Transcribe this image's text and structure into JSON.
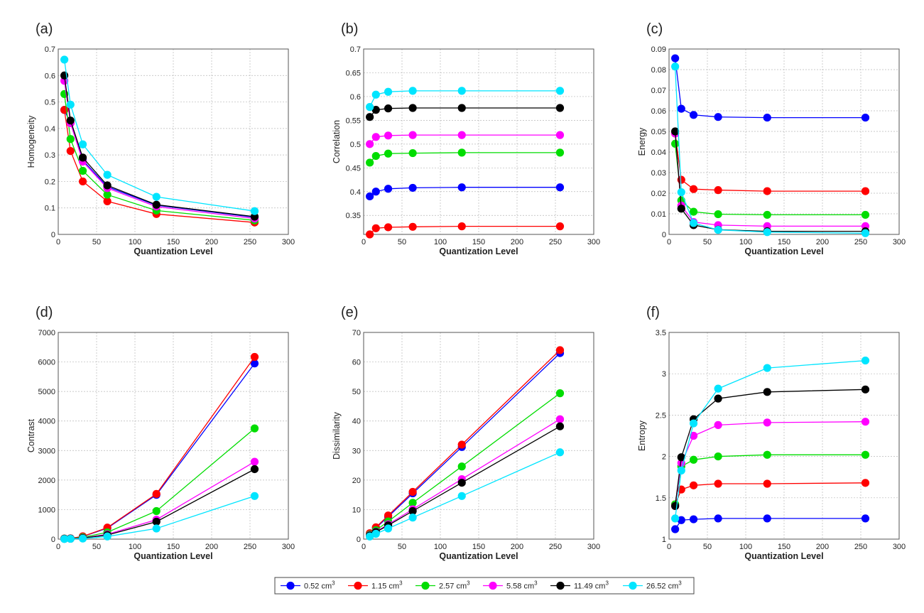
{
  "figure": {
    "x_label": "Quantization Level",
    "legend": [
      {
        "name": "0.52 cm",
        "sup": "3",
        "color": "#0000ff"
      },
      {
        "name": "1.15 cm",
        "sup": "3",
        "color": "#ff0000"
      },
      {
        "name": "2.57 cm",
        "sup": "3",
        "color": "#00dd00"
      },
      {
        "name": "5.58 cm",
        "sup": "3",
        "color": "#ff00ff"
      },
      {
        "name": "11.49 cm",
        "sup": "3",
        "color": "#000000"
      },
      {
        "name": "26.52 cm",
        "sup": "3",
        "color": "#00e5ff"
      }
    ]
  },
  "chart_data": [
    {
      "panel": "(a)",
      "type": "line",
      "title": "",
      "xlabel": "Quantization Level",
      "ylabel": "Homogeneity",
      "x": [
        8,
        16,
        32,
        64,
        128,
        256
      ],
      "xlim": [
        0,
        300
      ],
      "ylim": [
        0,
        0.7
      ],
      "xticks": [
        "0",
        "50",
        "100",
        "150",
        "200",
        "250",
        "300"
      ],
      "yticks": [
        "0",
        "0.1",
        "0.2",
        "0.3",
        "0.4",
        "0.5",
        "0.6",
        "0.7"
      ],
      "series": [
        {
          "name": "0.52 cm3",
          "values": [
            0.47,
            0.42,
            0.28,
            0.18,
            0.11,
            0.065
          ]
        },
        {
          "name": "1.15 cm3",
          "values": [
            0.47,
            0.315,
            0.2,
            0.125,
            0.077,
            0.045
          ]
        },
        {
          "name": "2.57 cm3",
          "values": [
            0.53,
            0.36,
            0.24,
            0.15,
            0.09,
            0.053
          ]
        },
        {
          "name": "5.58 cm3",
          "values": [
            0.58,
            0.42,
            0.275,
            0.175,
            0.105,
            0.06
          ]
        },
        {
          "name": "11.49 cm3",
          "values": [
            0.6,
            0.43,
            0.29,
            0.185,
            0.112,
            0.067
          ]
        },
        {
          "name": "26.52 cm3",
          "values": [
            0.66,
            0.49,
            0.34,
            0.225,
            0.142,
            0.088
          ]
        }
      ]
    },
    {
      "panel": "(b)",
      "type": "line",
      "title": "",
      "xlabel": "Quantization Level",
      "ylabel": "Correlation",
      "x": [
        8,
        16,
        32,
        64,
        128,
        256
      ],
      "xlim": [
        0,
        300
      ],
      "ylim": [
        0.31,
        0.7
      ],
      "xticks": [
        "0",
        "50",
        "100",
        "150",
        "200",
        "250",
        "300"
      ],
      "yticks": [
        "0.35",
        "0.4",
        "0.45",
        "0.5",
        "0.55",
        "0.6",
        "0.65",
        "0.7"
      ],
      "series": [
        {
          "name": "0.52 cm3",
          "values": [
            0.39,
            0.4,
            0.406,
            0.408,
            0.409,
            0.409
          ]
        },
        {
          "name": "1.15 cm3",
          "values": [
            0.31,
            0.323,
            0.325,
            0.326,
            0.327,
            0.327
          ]
        },
        {
          "name": "2.57 cm3",
          "values": [
            0.461,
            0.475,
            0.48,
            0.481,
            0.482,
            0.482
          ]
        },
        {
          "name": "5.58 cm3",
          "values": [
            0.5,
            0.515,
            0.518,
            0.519,
            0.519,
            0.519
          ]
        },
        {
          "name": "11.49 cm3",
          "values": [
            0.557,
            0.572,
            0.575,
            0.576,
            0.576,
            0.576
          ]
        },
        {
          "name": "26.52 cm3",
          "values": [
            0.578,
            0.604,
            0.61,
            0.612,
            0.612,
            0.612
          ]
        }
      ]
    },
    {
      "panel": "(c)",
      "type": "line",
      "title": "",
      "xlabel": "Quantization Level",
      "ylabel": "Energy",
      "x": [
        8,
        16,
        32,
        64,
        128,
        256
      ],
      "xlim": [
        0,
        300
      ],
      "ylim": [
        0,
        0.09
      ],
      "xticks": [
        "0",
        "50",
        "100",
        "150",
        "200",
        "250",
        "300"
      ],
      "yticks": [
        "0",
        "0.01",
        "0.02",
        "0.03",
        "0.04",
        "0.05",
        "0.06",
        "0.07",
        "0.08",
        "0.09"
      ],
      "series": [
        {
          "name": "0.52 cm3",
          "values": [
            0.0855,
            0.061,
            0.058,
            0.057,
            0.0567,
            0.0567
          ]
        },
        {
          "name": "1.15 cm3",
          "values": [
            0.049,
            0.0265,
            0.022,
            0.0215,
            0.021,
            0.021
          ]
        },
        {
          "name": "2.57 cm3",
          "values": [
            0.044,
            0.0165,
            0.011,
            0.0098,
            0.0095,
            0.0095
          ]
        },
        {
          "name": "5.58 cm3",
          "values": [
            0.049,
            0.014,
            0.006,
            0.0045,
            0.004,
            0.004
          ]
        },
        {
          "name": "11.49 cm3",
          "values": [
            0.05,
            0.0125,
            0.0045,
            0.0023,
            0.0015,
            0.0015
          ]
        },
        {
          "name": "26.52 cm3",
          "values": [
            0.0815,
            0.0205,
            0.0055,
            0.0022,
            0.0011,
            0.0006
          ]
        }
      ]
    },
    {
      "panel": "(d)",
      "type": "line",
      "title": "",
      "xlabel": "Quantization Level",
      "ylabel": "Contrast",
      "x": [
        8,
        16,
        32,
        64,
        128,
        256
      ],
      "xlim": [
        0,
        300
      ],
      "ylim": [
        0,
        7000
      ],
      "xticks": [
        "0",
        "50",
        "100",
        "150",
        "200",
        "250",
        "300"
      ],
      "yticks": [
        "0",
        "1000",
        "2000",
        "3000",
        "4000",
        "5000",
        "6000",
        "7000"
      ],
      "series": [
        {
          "name": "0.52 cm3",
          "values": [
            20,
            25,
            90,
            370,
            1500,
            5950
          ]
        },
        {
          "name": "1.15 cm3",
          "values": [
            20,
            25,
            95,
            390,
            1530,
            6170
          ]
        },
        {
          "name": "2.57 cm3",
          "values": [
            15,
            20,
            60,
            230,
            950,
            3750
          ]
        },
        {
          "name": "5.58 cm3",
          "values": [
            10,
            15,
            40,
            160,
            660,
            2620
          ]
        },
        {
          "name": "11.49 cm3",
          "values": [
            10,
            15,
            35,
            140,
            590,
            2370
          ]
        },
        {
          "name": "26.52 cm3",
          "values": [
            5,
            10,
            20,
            90,
            360,
            1460
          ]
        }
      ]
    },
    {
      "panel": "(e)",
      "type": "line",
      "title": "",
      "xlabel": "Quantization Level",
      "ylabel": "Dissimilarity",
      "x": [
        8,
        16,
        32,
        64,
        128,
        256
      ],
      "xlim": [
        0,
        300
      ],
      "ylim": [
        0,
        70
      ],
      "xticks": [
        "0",
        "50",
        "100",
        "150",
        "200",
        "250",
        "300"
      ],
      "yticks": [
        "0",
        "10",
        "20",
        "30",
        "40",
        "50",
        "60",
        "70"
      ],
      "series": [
        {
          "name": "0.52 cm3",
          "values": [
            1.9,
            3.8,
            7.6,
            15.5,
            31.2,
            63
          ]
        },
        {
          "name": "1.15 cm3",
          "values": [
            2,
            4,
            8,
            16,
            32,
            64
          ]
        },
        {
          "name": "2.57 cm3",
          "values": [
            1.5,
            3,
            6,
            12.3,
            24.6,
            49.4
          ]
        },
        {
          "name": "5.58 cm3",
          "values": [
            1.3,
            2.5,
            5,
            10.1,
            20.3,
            40.6
          ]
        },
        {
          "name": "11.49 cm3",
          "values": [
            1.2,
            2.4,
            4.7,
            9.5,
            19.1,
            38.2
          ]
        },
        {
          "name": "26.52 cm3",
          "values": [
            0.9,
            1.8,
            3.6,
            7.3,
            14.6,
            29.4
          ]
        }
      ]
    },
    {
      "panel": "(f)",
      "type": "line",
      "title": "",
      "xlabel": "Quantization Level",
      "ylabel": "Entropy",
      "x": [
        8,
        16,
        32,
        64,
        128,
        256
      ],
      "xlim": [
        0,
        300
      ],
      "ylim": [
        1,
        3.5
      ],
      "xticks": [
        "0",
        "50",
        "100",
        "150",
        "200",
        "250",
        "300"
      ],
      "yticks": [
        "1",
        "1.5",
        "2",
        "2.5",
        "3",
        "3.5"
      ],
      "series": [
        {
          "name": "0.52 cm3",
          "values": [
            1.12,
            1.23,
            1.24,
            1.25,
            1.25,
            1.25
          ]
        },
        {
          "name": "1.15 cm3",
          "values": [
            1.42,
            1.6,
            1.65,
            1.67,
            1.67,
            1.68
          ]
        },
        {
          "name": "2.57 cm3",
          "values": [
            1.42,
            1.88,
            1.96,
            2.0,
            2.02,
            2.02
          ]
        },
        {
          "name": "5.58 cm3",
          "values": [
            1.4,
            1.92,
            2.25,
            2.38,
            2.41,
            2.42
          ]
        },
        {
          "name": "11.49 cm3",
          "values": [
            1.4,
            1.99,
            2.45,
            2.7,
            2.78,
            2.81
          ]
        },
        {
          "name": "26.52 cm3",
          "values": [
            1.25,
            1.83,
            2.4,
            2.82,
            3.07,
            3.16
          ]
        }
      ]
    }
  ]
}
